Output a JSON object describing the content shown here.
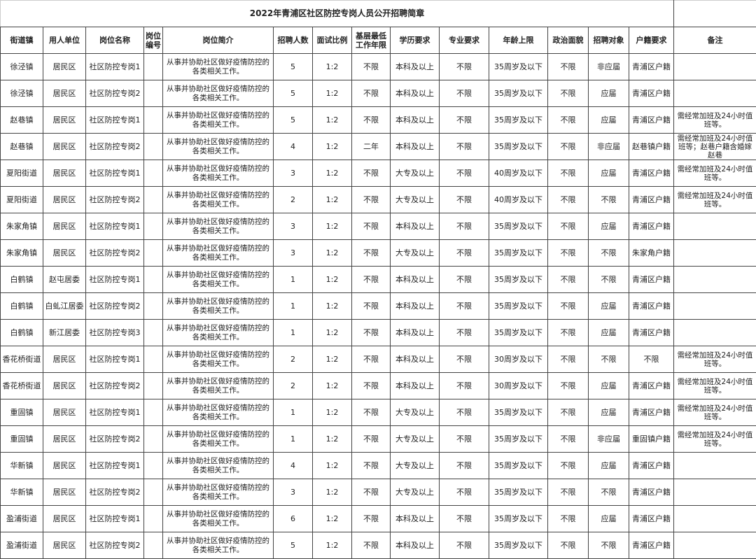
{
  "title": "2022年青浦区社区防控专岗人员公开招聘简章",
  "headers": [
    "街道镇",
    "用人单位",
    "岗位名称",
    "岗位编号",
    "岗位简介",
    "招聘人数",
    "面试比例",
    "基层最低工作年限",
    "学历要求",
    "专业要求",
    "年龄上限",
    "政治面貌",
    "招聘对象",
    "户籍要求",
    "备注"
  ],
  "rows": [
    [
      "徐泾镇",
      "居民区",
      "社区防控专岗1",
      "",
      "从事并协助社区做好疫情防控的各类相关工作。",
      "5",
      "1:2",
      "不限",
      "本科及以上",
      "不限",
      "35周岁及以下",
      "不限",
      "非应届",
      "青浦区户籍",
      ""
    ],
    [
      "徐泾镇",
      "居民区",
      "社区防控专岗2",
      "",
      "从事并协助社区做好疫情防控的各类相关工作。",
      "5",
      "1:2",
      "不限",
      "本科及以上",
      "不限",
      "35周岁及以下",
      "不限",
      "应届",
      "青浦区户籍",
      ""
    ],
    [
      "赵巷镇",
      "居民区",
      "社区防控专岗1",
      "",
      "从事并协助社区做好疫情防控的各类相关工作。",
      "5",
      "1:2",
      "不限",
      "本科及以上",
      "不限",
      "35周岁及以下",
      "不限",
      "应届",
      "青浦区户籍",
      "需经常加班及24小时值班等。"
    ],
    [
      "赵巷镇",
      "居民区",
      "社区防控专岗2",
      "",
      "从事并协助社区做好疫情防控的各类相关工作。",
      "4",
      "1:2",
      "二年",
      "本科及以上",
      "不限",
      "35周岁及以下",
      "不限",
      "非应届",
      "赵巷镇户籍",
      "需经常加班及24小时值班等；赵巷户籍含婚嫁赵巷"
    ],
    [
      "夏阳街道",
      "居民区",
      "社区防控专岗1",
      "",
      "从事并协助社区做好疫情防控的各类相关工作。",
      "3",
      "1:2",
      "不限",
      "大专及以上",
      "不限",
      "40周岁及以下",
      "不限",
      "应届",
      "青浦区户籍",
      "需经常加班及24小时值班等。"
    ],
    [
      "夏阳街道",
      "居民区",
      "社区防控专岗2",
      "",
      "从事并协助社区做好疫情防控的各类相关工作。",
      "2",
      "1:2",
      "不限",
      "大专及以上",
      "不限",
      "40周岁及以下",
      "不限",
      "不限",
      "青浦区户籍",
      "需经常加班及24小时值班等。"
    ],
    [
      "朱家角镇",
      "居民区",
      "社区防控专岗1",
      "",
      "从事并协助社区做好疫情防控的各类相关工作。",
      "3",
      "1:2",
      "不限",
      "本科及以上",
      "不限",
      "35周岁及以下",
      "不限",
      "应届",
      "青浦区户籍",
      ""
    ],
    [
      "朱家角镇",
      "居民区",
      "社区防控专岗2",
      "",
      "从事并协助社区做好疫情防控的各类相关工作。",
      "3",
      "1:2",
      "不限",
      "大专及以上",
      "不限",
      "35周岁及以下",
      "不限",
      "不限",
      "朱家角户籍",
      ""
    ],
    [
      "白鹤镇",
      "赵屯居委",
      "社区防控专岗1",
      "",
      "从事并协助社区做好疫情防控的各类相关工作。",
      "1",
      "1:2",
      "不限",
      "本科及以上",
      "不限",
      "35周岁及以下",
      "不限",
      "不限",
      "青浦区户籍",
      ""
    ],
    [
      "白鹤镇",
      "白虬江居委",
      "社区防控专岗2",
      "",
      "从事并协助社区做好疫情防控的各类相关工作。",
      "1",
      "1:2",
      "不限",
      "本科及以上",
      "不限",
      "35周岁及以下",
      "不限",
      "应届",
      "青浦区户籍",
      ""
    ],
    [
      "白鹤镇",
      "新江居委",
      "社区防控专岗3",
      "",
      "从事并协助社区做好疫情防控的各类相关工作。",
      "1",
      "1:2",
      "不限",
      "本科及以上",
      "不限",
      "35周岁及以下",
      "不限",
      "应届",
      "青浦区户籍",
      ""
    ],
    [
      "香花桥街道",
      "居民区",
      "社区防控专岗1",
      "",
      "从事并协助社区做好疫情防控的各类相关工作。",
      "2",
      "1:2",
      "不限",
      "本科及以上",
      "不限",
      "30周岁及以下",
      "不限",
      "不限",
      "不限",
      "需经常加班及24小时值班等。"
    ],
    [
      "香花桥街道",
      "居民区",
      "社区防控专岗2",
      "",
      "从事并协助社区做好疫情防控的各类相关工作。",
      "2",
      "1:2",
      "不限",
      "本科及以上",
      "不限",
      "30周岁及以下",
      "不限",
      "应届",
      "青浦区户籍",
      "需经常加班及24小时值班等。"
    ],
    [
      "重固镇",
      "居民区",
      "社区防控专岗1",
      "",
      "从事并协助社区做好疫情防控的各类相关工作。",
      "1",
      "1:2",
      "不限",
      "大专及以上",
      "不限",
      "35周岁及以下",
      "不限",
      "应届",
      "青浦区户籍",
      "需经常加班及24小时值班等。"
    ],
    [
      "重固镇",
      "居民区",
      "社区防控专岗2",
      "",
      "从事并协助社区做好疫情防控的各类相关工作。",
      "1",
      "1:2",
      "不限",
      "大专及以上",
      "不限",
      "35周岁及以下",
      "不限",
      "非应届",
      "重固镇户籍",
      "需经常加班及24小时值班等。"
    ],
    [
      "华新镇",
      "居民区",
      "社区防控专岗1",
      "",
      "从事并协助社区做好疫情防控的各类相关工作。",
      "4",
      "1:2",
      "不限",
      "大专及以上",
      "不限",
      "35周岁及以下",
      "不限",
      "应届",
      "青浦区户籍",
      ""
    ],
    [
      "华新镇",
      "居民区",
      "社区防控专岗2",
      "",
      "从事并协助社区做好疫情防控的各类相关工作。",
      "3",
      "1:2",
      "不限",
      "大专及以上",
      "不限",
      "35周岁及以下",
      "不限",
      "不限",
      "青浦区户籍",
      ""
    ],
    [
      "盈浦街道",
      "居民区",
      "社区防控专岗1",
      "",
      "从事并协助社区做好疫情防控的各类相关工作。",
      "6",
      "1:2",
      "不限",
      "本科及以上",
      "不限",
      "35周岁及以下",
      "不限",
      "应届",
      "青浦区户籍",
      ""
    ],
    [
      "盈浦街道",
      "居民区",
      "社区防控专岗2",
      "",
      "从事并协助社区做好疫情防控的各类相关工作。",
      "5",
      "1:2",
      "不限",
      "本科及以上",
      "不限",
      "35周岁及以下",
      "不限",
      "不限",
      "青浦区户籍",
      ""
    ]
  ]
}
